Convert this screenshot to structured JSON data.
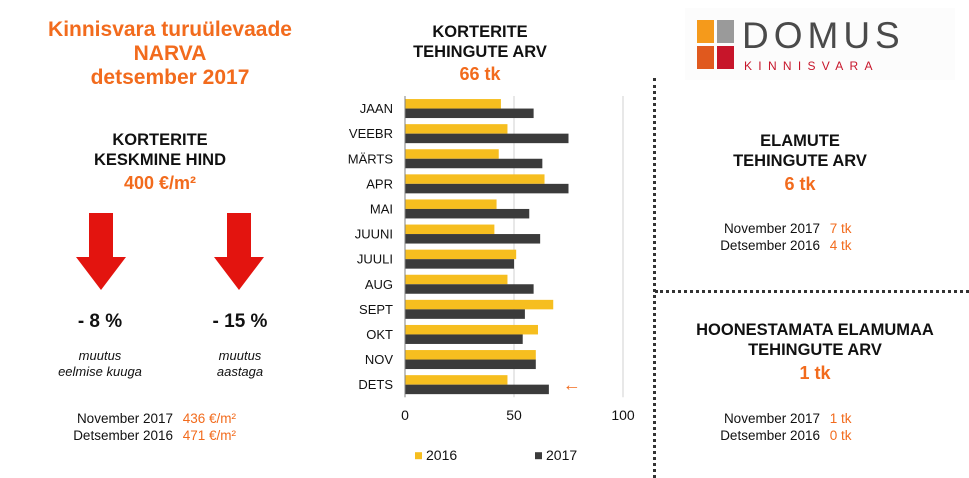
{
  "header": {
    "title_line1": "Kinnisvara turuülevaade",
    "title_line2": "NARVA",
    "title_line3": "detsember 2017"
  },
  "price": {
    "label_line1": "KORTERITE",
    "label_line2": "KESKMINE HIND",
    "value": "400 €/m²",
    "change_month": "- 8 %",
    "change_month_note1": "muutus",
    "change_month_note2": "eelmise kuuga",
    "change_year": "- 15 %",
    "change_year_note1": "muutus",
    "change_year_note2": "aastaga",
    "row1_label": "November  2017",
    "row1_value": "436 €/m²",
    "row2_label": "Detsember  2016",
    "row2_value": "471 €/m²",
    "arrow_color": "#e3140f",
    "arrow_icon": "arrow-down-icon"
  },
  "chart_header": {
    "line1": "KORTERITE",
    "line2": "TEHINGUTE ARV",
    "value": "66 tk"
  },
  "chart_data": {
    "type": "bar",
    "orientation": "horizontal",
    "categories": [
      "JAAN",
      "VEEBR",
      "MÄRTS",
      "APR",
      "MAI",
      "JUUNI",
      "JUULI",
      "AUG",
      "SEPT",
      "OKT",
      "NOV",
      "DETS"
    ],
    "series": [
      {
        "name": "2016",
        "color": "#f6be1f",
        "values": [
          44,
          47,
          43,
          64,
          42,
          41,
          51,
          47,
          68,
          61,
          60,
          47
        ]
      },
      {
        "name": "2017",
        "color": "#3b3b3b",
        "values": [
          59,
          75,
          63,
          75,
          57,
          62,
          50,
          59,
          55,
          54,
          60,
          66
        ]
      }
    ],
    "xlim": [
      0,
      100
    ],
    "xticks": [
      0,
      50,
      100
    ],
    "grid": true,
    "legend_position": "bottom",
    "highlight_category": "DETS",
    "highlight_marker": "←"
  },
  "houses": {
    "line1": "ELAMUTE",
    "line2": "TEHINGUTE ARV",
    "value": "6 tk",
    "row1_label": "November  2017",
    "row1_value": "7 tk",
    "row2_label": "Detsember  2016",
    "row2_value": "4 tk"
  },
  "land": {
    "line1": "HOONESTAMATA ELAMUMAA",
    "line2": "TEHINGUTE ARV",
    "value": "1 tk",
    "row1_label": "November  2017",
    "row1_value": "1 tk",
    "row2_label": "Detsember  2016",
    "row2_value": "0 tk"
  },
  "logo": {
    "name": "DOMUS",
    "sub": "KINNISVARA",
    "colors": [
      "#f59a1b",
      "#9a9a9a",
      "#e0591e",
      "#c7152a"
    ]
  }
}
